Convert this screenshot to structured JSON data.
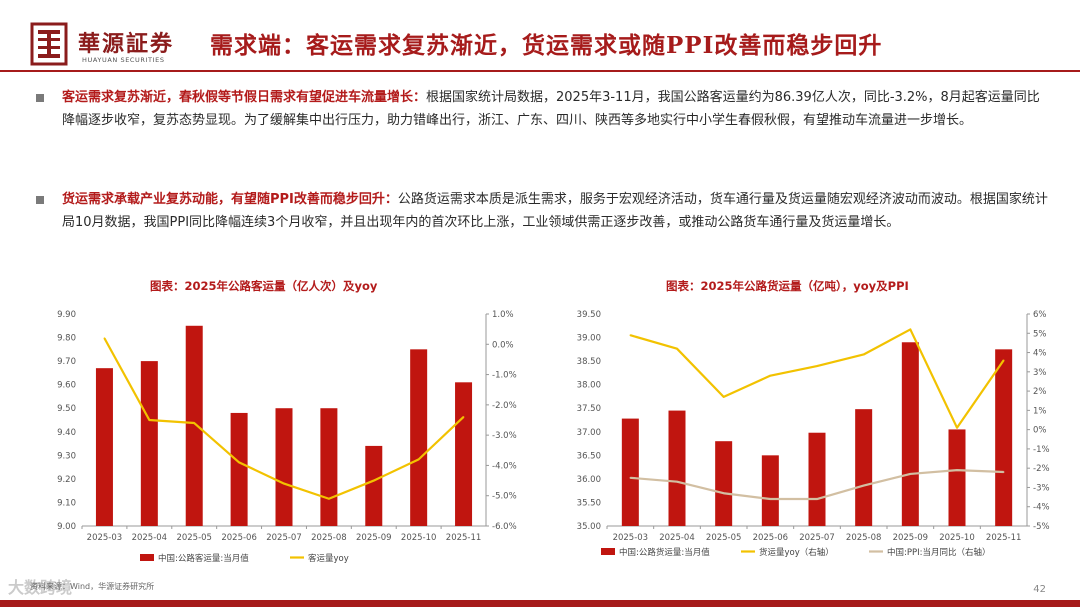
{
  "header": {
    "logo_cn": "華源証券",
    "logo_en": "HUAYUAN SECURITIES",
    "title": "需求端：客运需求复苏渐近，货运需求或随PPI改善而稳步回升",
    "accent_color": "#a61b1b"
  },
  "bullets": [
    {
      "lead": "客运需求复苏渐近，春秋假等节假日需求有望促进车流量增长：",
      "text": "根据国家统计局数据，2025年3-11月，我国公路客运量约为86.39亿人次，同比-3.2%，8月起客运量同比降幅逐步收窄，复苏态势显现。为了缓解集中出行压力，助力错峰出行，浙江、广东、四川、陕西等多地实行中小学生春假秋假，有望推动车流量进一步增长。"
    },
    {
      "lead": "货运需求承载产业复苏动能，有望随PPI改善而稳步回升：",
      "text": "公路货运需求本质是派生需求，服务于宏观经济活动，货车通行量及货运量随宏观经济波动而波动。根据国家统计局10月数据，我国PPI同比降幅连续3个月收窄，并且出现年内的首次环比上涨，工业领域供需正逐步改善，或推动公路货车通行量及货运量增长。"
    }
  ],
  "chart_data": [
    {
      "type": "bar",
      "title": "图表：2025年公路客运量（亿人次）及yoy",
      "categories": [
        "2025-03",
        "2025-04",
        "2025-05",
        "2025-06",
        "2025-07",
        "2025-08",
        "2025-09",
        "2025-10",
        "2025-11"
      ],
      "ylim": [
        9.0,
        9.9
      ],
      "y_ticks": [
        "9.00",
        "9.10",
        "9.20",
        "9.30",
        "9.40",
        "9.50",
        "9.60",
        "9.70",
        "9.80",
        "9.90"
      ],
      "y2lim": [
        -6.0,
        1.0
      ],
      "y2_ticks": [
        "-6.0%",
        "-5.0%",
        "-4.0%",
        "-3.0%",
        "-2.0%",
        "-1.0%",
        "0.0%",
        "1.0%"
      ],
      "series": [
        {
          "name": "中国:公路客运量:当月值",
          "kind": "bar",
          "axis": "left",
          "color": "#c0150f",
          "values": [
            9.67,
            9.7,
            9.85,
            9.48,
            9.5,
            9.5,
            9.34,
            9.75,
            9.61
          ]
        },
        {
          "name": "客运量yoy",
          "kind": "line",
          "axis": "right",
          "color": "#f2c200",
          "values": [
            0.2,
            -2.5,
            -2.6,
            -3.9,
            -4.6,
            -5.1,
            -4.5,
            -3.8,
            -2.4
          ]
        }
      ]
    },
    {
      "type": "bar",
      "title": "图表：2025年公路货运量（亿吨），yoy及PPI",
      "categories": [
        "2025-03",
        "2025-04",
        "2025-05",
        "2025-06",
        "2025-07",
        "2025-08",
        "2025-09",
        "2025-10",
        "2025-11"
      ],
      "ylim": [
        35.0,
        39.5
      ],
      "y_ticks": [
        "35.00",
        "35.50",
        "36.00",
        "36.50",
        "37.00",
        "37.50",
        "38.00",
        "38.50",
        "39.00",
        "39.50"
      ],
      "y2lim": [
        -5,
        6
      ],
      "y2_ticks": [
        "-5%",
        "-4%",
        "-3%",
        "-2%",
        "-1%",
        "0%",
        "1%",
        "2%",
        "3%",
        "4%",
        "5%",
        "6%"
      ],
      "series": [
        {
          "name": "中国:公路货运量:当月值",
          "kind": "bar",
          "axis": "left",
          "color": "#c0150f",
          "values": [
            37.28,
            37.45,
            36.8,
            36.5,
            36.98,
            37.48,
            38.9,
            37.05,
            38.75
          ]
        },
        {
          "name": "货运量yoy（右轴）",
          "kind": "line",
          "axis": "right",
          "color": "#f2c200",
          "values": [
            4.9,
            4.2,
            1.7,
            2.8,
            3.3,
            3.9,
            5.2,
            0.1,
            3.6
          ]
        },
        {
          "name": "中国:PPI:当月同比（右轴）",
          "kind": "line",
          "axis": "right",
          "color": "#d2bfa2",
          "values": [
            -2.5,
            -2.7,
            -3.3,
            -3.6,
            -3.6,
            -2.9,
            -2.3,
            -2.1,
            -2.2
          ]
        }
      ]
    }
  ],
  "footer": {
    "source": "资料来源：Wind，华源证券研究所",
    "watermark": "大数跨境",
    "page": "42"
  }
}
